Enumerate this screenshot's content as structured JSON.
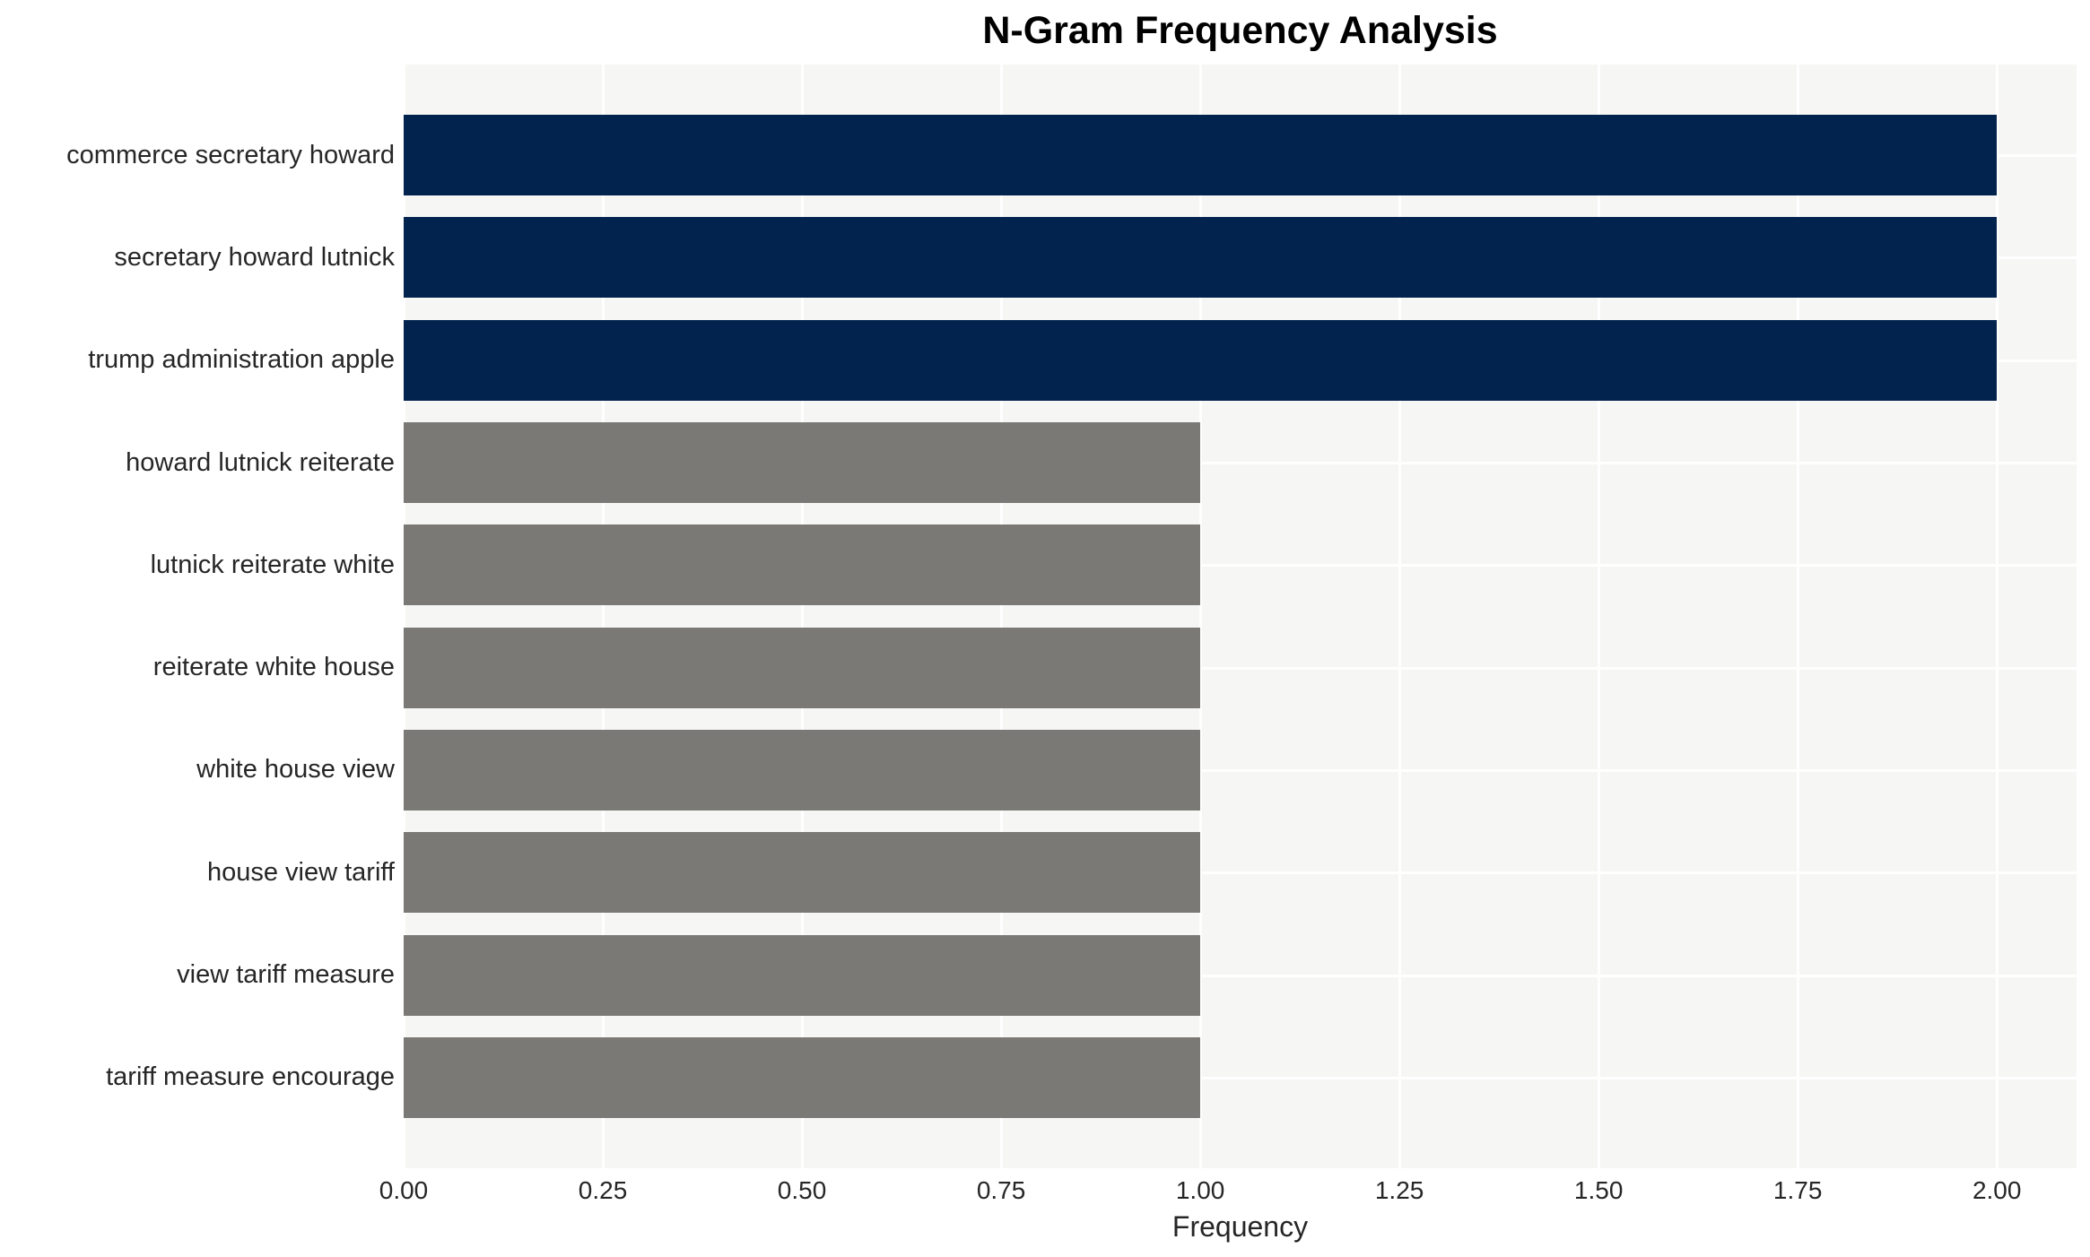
{
  "title": "N-Gram Frequency Analysis",
  "xlabel": "Frequency",
  "chart_data": {
    "type": "bar",
    "orientation": "horizontal",
    "title": "N-Gram Frequency Analysis",
    "xlabel": "Frequency",
    "ylabel": "",
    "categories": [
      "commerce secretary howard",
      "secretary howard lutnick",
      "trump administration apple",
      "howard lutnick reiterate",
      "lutnick reiterate white",
      "reiterate white house",
      "white house view",
      "house view tariff",
      "view tariff measure",
      "tariff measure encourage"
    ],
    "values": [
      2.0,
      2.0,
      2.0,
      1.0,
      1.0,
      1.0,
      1.0,
      1.0,
      1.0,
      1.0
    ],
    "bar_colors": [
      "#02234e",
      "#02234e",
      "#02234e",
      "#7a7975",
      "#7a7975",
      "#7a7975",
      "#7a7975",
      "#7a7975",
      "#7a7975",
      "#7a7975"
    ],
    "xlim": [
      0,
      2.1
    ],
    "xticks": [
      0.0,
      0.25,
      0.5,
      0.75,
      1.0,
      1.25,
      1.5,
      1.75,
      2.0
    ],
    "xtick_labels": [
      "0.00",
      "0.25",
      "0.50",
      "0.75",
      "1.00",
      "1.25",
      "1.50",
      "1.75",
      "2.00"
    ],
    "grid": true,
    "grid_color": "#ffffff",
    "plot_bg_color": "#f6f6f5",
    "figure_bg_color": "#ffffff",
    "text_color": "#262626",
    "title_color": "#000000",
    "legend": false
  }
}
